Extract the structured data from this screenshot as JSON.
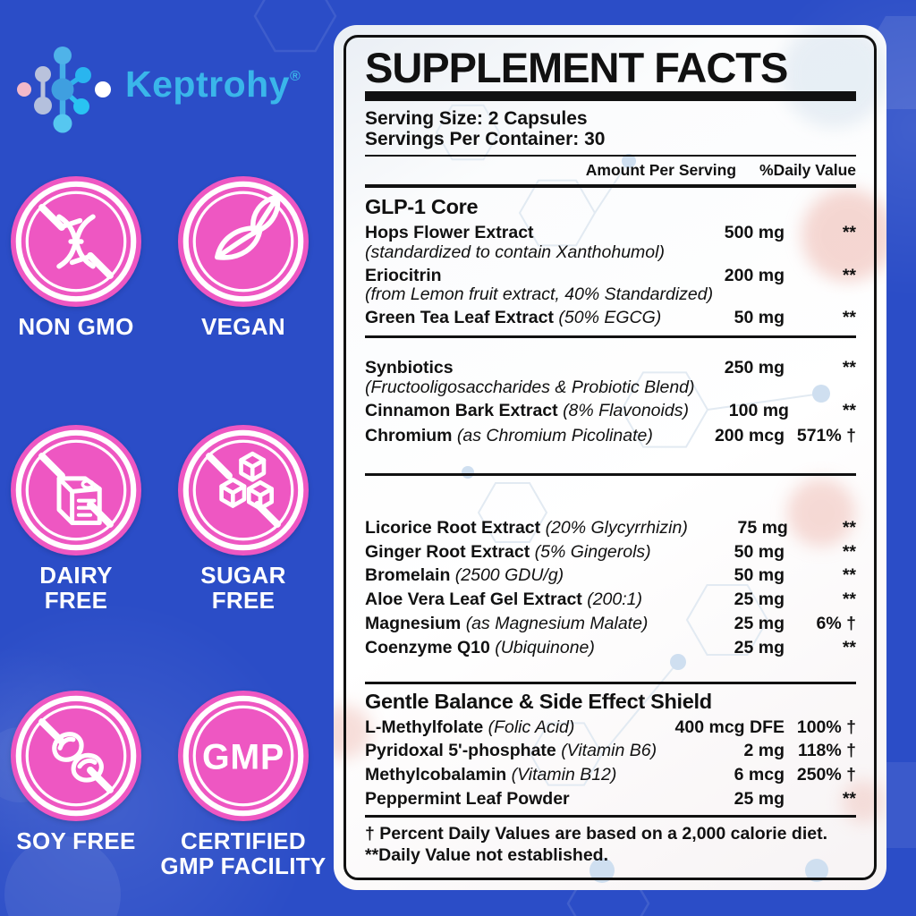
{
  "colors": {
    "background": "#2b4dc7",
    "badge_pink": "#ee57c2",
    "brand_cyan": "#3ab6ea",
    "ink": "#111111"
  },
  "logo": {
    "brand": "Keptrohy",
    "registered": "®"
  },
  "badges": [
    {
      "id": "non-gmo",
      "icon": "no-gmo-dna-icon",
      "lines": [
        "NON GMO"
      ]
    },
    {
      "id": "vegan",
      "icon": "vegan-leaves-icon",
      "lines": [
        "VEGAN"
      ]
    },
    {
      "id": "dairy-free",
      "icon": "no-dairy-carton-icon",
      "lines": [
        "DAIRY",
        "FREE"
      ]
    },
    {
      "id": "sugar-free",
      "icon": "no-sugar-cubes-icon",
      "lines": [
        "SUGAR",
        "FREE"
      ]
    },
    {
      "id": "soy-free",
      "icon": "no-soy-beans-icon",
      "lines": [
        "SOY FREE"
      ]
    },
    {
      "id": "gmp-facility",
      "icon": "gmp-seal-icon",
      "lines": [
        "CERTIFIED",
        "GMP FACILITY"
      ]
    }
  ],
  "panel": {
    "title": "SUPPLEMENT FACTS",
    "serving_size": "Serving Size: 2 Capsules",
    "servings_per_container": "Servings Per Container: 30",
    "columns": {
      "amount": "Amount Per Serving",
      "daily_value": "%Daily Value"
    },
    "sections": [
      {
        "header": "GLP-1 Core",
        "rows": [
          {
            "name": "Hops Flower Extract",
            "note": "",
            "subnote": "(standardized to contain Xanthohumol)",
            "amount": "500 mg",
            "dv": "**"
          },
          {
            "name": "Eriocitrin",
            "note": "",
            "subnote": "(from Lemon fruit extract, 40% Standardized)",
            "amount": "200 mg",
            "dv": "**"
          },
          {
            "name": "Green Tea Leaf Extract",
            "note": "(50% EGCG)",
            "subnote": "",
            "amount": "50 mg",
            "dv": "**"
          }
        ]
      },
      {
        "header": "",
        "rows": [
          {
            "name": "Synbiotics",
            "note": "",
            "subnote": "(Fructooligosaccharides & Probiotic Blend)",
            "amount": "250 mg",
            "dv": "**"
          },
          {
            "name": "Cinnamon Bark Extract",
            "note": "(8% Flavonoids)",
            "subnote": "",
            "amount": "100 mg",
            "dv": "**"
          },
          {
            "name": "Chromium",
            "note": "(as Chromium Picolinate)",
            "subnote": "",
            "amount": "200 mcg",
            "dv": "571% †"
          }
        ]
      },
      {
        "header": "",
        "rows": [
          {
            "name": "Licorice Root Extract",
            "note": "(20% Glycyrrhizin)",
            "subnote": "",
            "amount": "75 mg",
            "dv": "**"
          },
          {
            "name": "Ginger Root Extract",
            "note": "(5% Gingerols)",
            "subnote": "",
            "amount": "50 mg",
            "dv": "**"
          },
          {
            "name": "Bromelain",
            "note": "(2500 GDU/g)",
            "subnote": "",
            "amount": "50 mg",
            "dv": "**"
          },
          {
            "name": "Aloe Vera Leaf Gel Extract",
            "note": "(200:1)",
            "subnote": "",
            "amount": "25 mg",
            "dv": "**"
          },
          {
            "name": "Magnesium",
            "note": "(as Magnesium Malate)",
            "subnote": "",
            "amount": "25 mg",
            "dv": "6% †"
          },
          {
            "name": "Coenzyme Q10",
            "note": "(Ubiquinone)",
            "subnote": "",
            "amount": "25 mg",
            "dv": "**"
          }
        ]
      },
      {
        "header": "Gentle Balance & Side Effect Shield",
        "rows": [
          {
            "name": "L-Methylfolate",
            "note": "(Folic Acid)",
            "subnote": "",
            "amount": "400 mcg DFE",
            "dv": "100% †"
          },
          {
            "name": "Pyridoxal 5'-phosphate",
            "note": "(Vitamin B6)",
            "subnote": "",
            "amount": "2 mg",
            "dv": "118% †"
          },
          {
            "name": "Methylcobalamin",
            "note": "(Vitamin B12)",
            "subnote": "",
            "amount": "6 mcg",
            "dv": "250% †"
          },
          {
            "name": "Peppermint Leaf Powder",
            "note": "",
            "subnote": "",
            "amount": "25 mg",
            "dv": "**"
          }
        ]
      }
    ],
    "footnotes": [
      "† Percent Daily Values are based on a 2,000 calorie diet.",
      "**Daily Value not established."
    ]
  }
}
